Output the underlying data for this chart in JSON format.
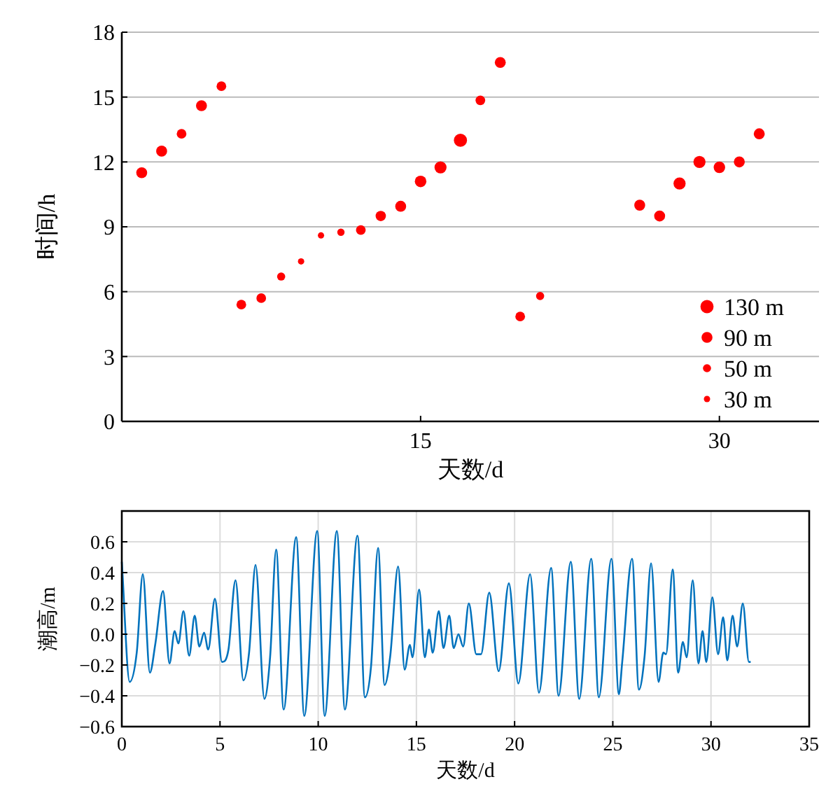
{
  "chart_data": [
    {
      "type": "bubble",
      "xlabel": "天数/d",
      "ylabel": "时间/h",
      "color": "#ff0000",
      "x": [
        1,
        2,
        3,
        4,
        5,
        6,
        7,
        8,
        9,
        10,
        11,
        12,
        13,
        14,
        15,
        16,
        17,
        18,
        19,
        20,
        21,
        26,
        27,
        28,
        29,
        30,
        31,
        32
      ],
      "values": [
        11.5,
        12.5,
        13.3,
        14.6,
        15.5,
        5.4,
        5.7,
        6.7,
        7.4,
        8.6,
        8.75,
        8.85,
        9.5,
        9.95,
        11.1,
        11.75,
        13.0,
        14.85,
        16.6,
        4.85,
        5.8,
        10.0,
        9.5,
        11.0,
        12.0,
        11.75,
        12.0,
        13.3
      ],
      "sizes": [
        90,
        90,
        70,
        90,
        70,
        70,
        70,
        50,
        30,
        30,
        40,
        70,
        80,
        90,
        100,
        110,
        130,
        70,
        90,
        70,
        50,
        90,
        90,
        110,
        110,
        100,
        90,
        90
      ],
      "size_legend": [
        {
          "value": 130,
          "label": "130 m"
        },
        {
          "value": 90,
          "label": "90 m"
        },
        {
          "value": 50,
          "label": "50 m"
        },
        {
          "value": 30,
          "label": "30 m"
        }
      ],
      "xlim": [
        0,
        35
      ],
      "xticks": [
        15,
        30
      ],
      "ylim": [
        0,
        18
      ],
      "yticks": [
        0,
        3,
        6,
        9,
        12,
        15,
        18
      ],
      "grid": "y"
    },
    {
      "type": "line",
      "xlabel": "天数/d",
      "ylabel": "潮高/m",
      "grid": true,
      "series": [
        {
          "color": "#0072bd",
          "x": [
            0,
            0.4,
            0.76,
            1.07,
            1.43,
            1.71,
            2.1,
            2.43,
            2.69,
            2.88,
            3.14,
            3.43,
            3.71,
            3.95,
            4.19,
            4.4,
            4.74,
            5.1,
            5.43,
            5.79,
            6.19,
            6.48,
            6.81,
            7.26,
            7.55,
            7.86,
            8.24,
            8.88,
            9.29,
            9.95,
            10.33,
            10.95,
            11.36,
            12.0,
            12.38,
            12.69,
            13.05,
            13.38,
            13.67,
            14.07,
            14.4,
            14.67,
            14.8,
            15.14,
            15.43,
            15.64,
            15.83,
            16.14,
            16.38,
            16.67,
            16.9,
            17.14,
            17.38,
            17.67,
            18.05,
            18.29,
            18.71,
            19.19,
            19.71,
            20.19,
            20.79,
            21.24,
            21.86,
            22.24,
            22.86,
            23.29,
            23.9,
            24.29,
            24.93,
            25.31,
            25.48,
            25.98,
            26.33,
            26.62,
            26.95,
            27.33,
            27.57,
            27.71,
            28.05,
            28.33,
            28.57,
            28.76,
            29.07,
            29.36,
            29.57,
            29.76,
            30.07,
            30.36,
            30.62,
            30.83,
            31.1,
            31.33,
            31.62,
            31.93,
            32.02
          ],
          "values": [
            0.47,
            -0.31,
            -0.12,
            0.39,
            -0.25,
            -0.06,
            0.28,
            -0.19,
            0.02,
            -0.06,
            0.15,
            -0.14,
            0.12,
            -0.08,
            0.01,
            -0.1,
            0.23,
            -0.18,
            -0.1,
            0.35,
            -0.3,
            -0.12,
            0.45,
            -0.42,
            -0.15,
            0.55,
            -0.49,
            0.63,
            -0.53,
            0.67,
            -0.53,
            0.67,
            -0.49,
            0.64,
            -0.41,
            -0.21,
            0.56,
            -0.33,
            -0.14,
            0.44,
            -0.23,
            -0.07,
            -0.15,
            0.29,
            -0.15,
            0.03,
            -0.12,
            0.15,
            -0.09,
            0.12,
            -0.09,
            0.0,
            -0.08,
            0.2,
            -0.13,
            -0.13,
            0.27,
            -0.24,
            0.33,
            -0.32,
            0.39,
            -0.38,
            0.43,
            -0.4,
            0.47,
            -0.42,
            0.49,
            -0.41,
            0.49,
            -0.39,
            -0.18,
            0.49,
            -0.36,
            -0.14,
            0.46,
            -0.31,
            -0.12,
            -0.13,
            0.42,
            -0.25,
            -0.05,
            -0.15,
            0.35,
            -0.19,
            0.02,
            -0.18,
            0.24,
            -0.13,
            0.11,
            -0.17,
            0.12,
            -0.08,
            0.2,
            -0.18,
            -0.18
          ]
        }
      ],
      "xlim": [
        0,
        35
      ],
      "xticks": [
        0,
        5,
        10,
        15,
        20,
        25,
        30,
        35
      ],
      "ylim": [
        -0.6,
        0.8
      ],
      "yticks": [
        {
          "value": -0.6,
          "label": "−0.6"
        },
        {
          "value": -0.4,
          "label": "−0.4"
        },
        {
          "value": -0.2,
          "label": "−0.2"
        },
        {
          "value": 0,
          "label": "0.0"
        },
        0.2,
        0.4,
        0.6
      ]
    }
  ]
}
